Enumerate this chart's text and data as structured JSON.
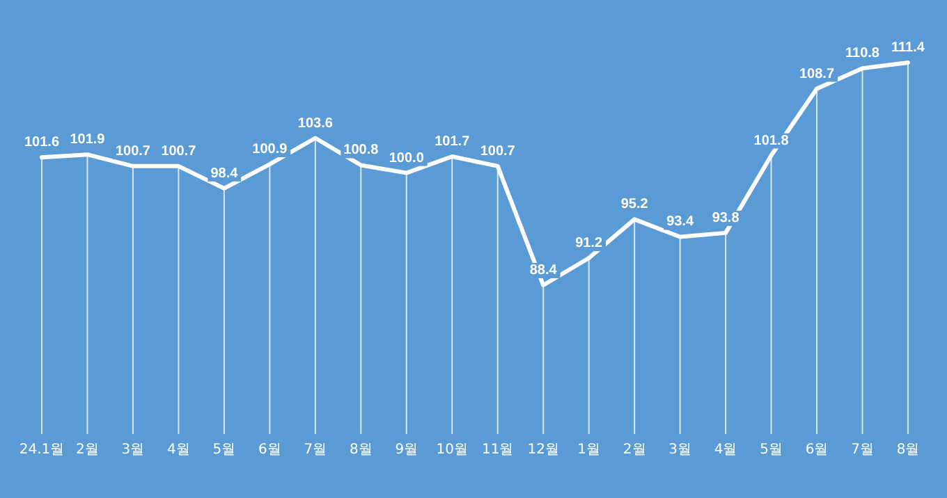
{
  "chart_data": {
    "type": "line",
    "categories": [
      "24.1월",
      "2월",
      "3월",
      "4월",
      "5월",
      "6월",
      "7월",
      "8월",
      "9월",
      "10월",
      "11월",
      "12월",
      "1월",
      "2월",
      "3월",
      "4월",
      "5월",
      "6월",
      "7월",
      "8월"
    ],
    "series": [
      {
        "color": "#ffffff",
        "values": [
          101.6,
          101.9,
          100.7,
          100.7,
          98.4,
          100.9,
          103.6,
          100.8,
          100.0,
          101.7,
          100.7,
          88.4,
          91.2,
          95.2,
          93.4,
          93.8,
          101.8,
          108.7,
          110.8,
          111.4
        ],
        "value_labels": [
          "101.6",
          "101.9",
          "100.7",
          "100.7",
          "98.4",
          "100.9",
          "103.6",
          "100.8",
          "100.0",
          "101.7",
          "100.7",
          "88.4",
          "91.2",
          "95.2",
          "93.4",
          "93.8",
          "101.8",
          "108.7",
          "110.8",
          "111.4"
        ]
      }
    ],
    "grid": "x",
    "marker": "none",
    "line_style": "solid"
  }
}
